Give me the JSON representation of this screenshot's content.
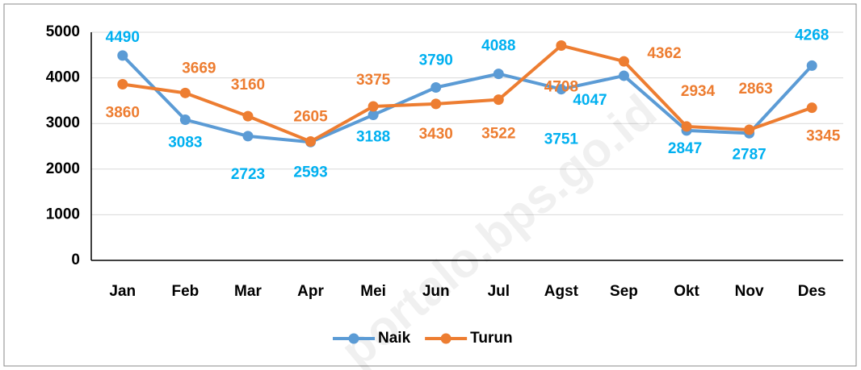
{
  "chart_data": {
    "type": "line",
    "categories": [
      "Jan",
      "Feb",
      "Mar",
      "Apr",
      "Mei",
      "Jun",
      "Jul",
      "Agst",
      "Sep",
      "Okt",
      "Nov",
      "Des"
    ],
    "series": [
      {
        "name": "Naik",
        "color": "#5b9bd5",
        "label_color": "#00b0f0",
        "values": [
          4490,
          3083,
          2723,
          2593,
          3188,
          3790,
          4088,
          3751,
          4047,
          2847,
          2787,
          4268
        ]
      },
      {
        "name": "Turun",
        "color": "#ed7d31",
        "label_color": "#ed7d31",
        "values": [
          3860,
          3669,
          3160,
          2605,
          3375,
          3430,
          3522,
          4708,
          4362,
          2934,
          2863,
          3345
        ]
      }
    ],
    "ylim": [
      0,
      5000
    ],
    "yticks": [
      0,
      1000,
      2000,
      3000,
      4000,
      5000
    ],
    "grid": true,
    "legend": "bottom",
    "watermark": "portalo.bps.go.id"
  }
}
